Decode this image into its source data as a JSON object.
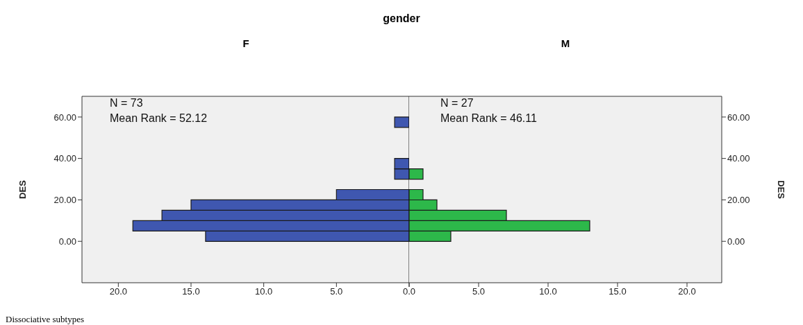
{
  "chart_data": [
    {
      "type": "histogram",
      "orientation": "horizontal",
      "title": "gender",
      "subtitle": "F",
      "ylabel": "DES",
      "bins": [
        0,
        5,
        10,
        15,
        20,
        25,
        30,
        35,
        40,
        45,
        50,
        55,
        60
      ],
      "values": [
        14,
        19,
        17,
        15,
        5,
        0,
        1,
        1,
        0,
        0,
        0,
        1
      ],
      "color": "#3f57b0",
      "xlim": [
        22.5,
        0
      ],
      "xticks": [
        {
          "value": 20,
          "label": "20.0"
        },
        {
          "value": 15,
          "label": "15.0"
        },
        {
          "value": 10,
          "label": "10.0"
        },
        {
          "value": 5,
          "label": "5.0"
        },
        {
          "value": 0,
          "label": "0.0"
        }
      ],
      "ylim": [
        -20,
        70
      ],
      "yticks": [
        {
          "value": 0,
          "label": "0.00"
        },
        {
          "value": 20,
          "label": "20.00"
        },
        {
          "value": 40,
          "label": "40.00"
        },
        {
          "value": 60,
          "label": "60.00"
        }
      ],
      "annotations": [
        "N = 73",
        "Mean Rank = 52.12",
        "Dissociative subtypes"
      ],
      "grid": false,
      "legend": false
    },
    {
      "type": "histogram",
      "orientation": "horizontal",
      "subtitle": "M",
      "ylabel": "DES",
      "bins": [
        0,
        5,
        10,
        15,
        20,
        25,
        30,
        35,
        40,
        45,
        50,
        55,
        60
      ],
      "values": [
        3,
        13,
        7,
        2,
        1,
        0,
        1,
        0,
        0,
        0,
        0,
        0
      ],
      "color": "#2db84a",
      "xlim": [
        0,
        22.5
      ],
      "xticks": [
        {
          "value": 0,
          "label": null
        },
        {
          "value": 5,
          "label": "5.0"
        },
        {
          "value": 10,
          "label": "10.0"
        },
        {
          "value": 15,
          "label": "15.0"
        },
        {
          "value": 20,
          "label": "20.0"
        }
      ],
      "ylim": [
        -20,
        70
      ],
      "yticks": [
        {
          "value": 0,
          "label": "0.00"
        },
        {
          "value": 20,
          "label": "20.00"
        },
        {
          "value": 40,
          "label": "40.00"
        },
        {
          "value": 60,
          "label": "60.00"
        }
      ],
      "annotations": [
        "N = 27",
        "Mean Rank = 46.11"
      ],
      "grid": false,
      "legend": false
    }
  ]
}
